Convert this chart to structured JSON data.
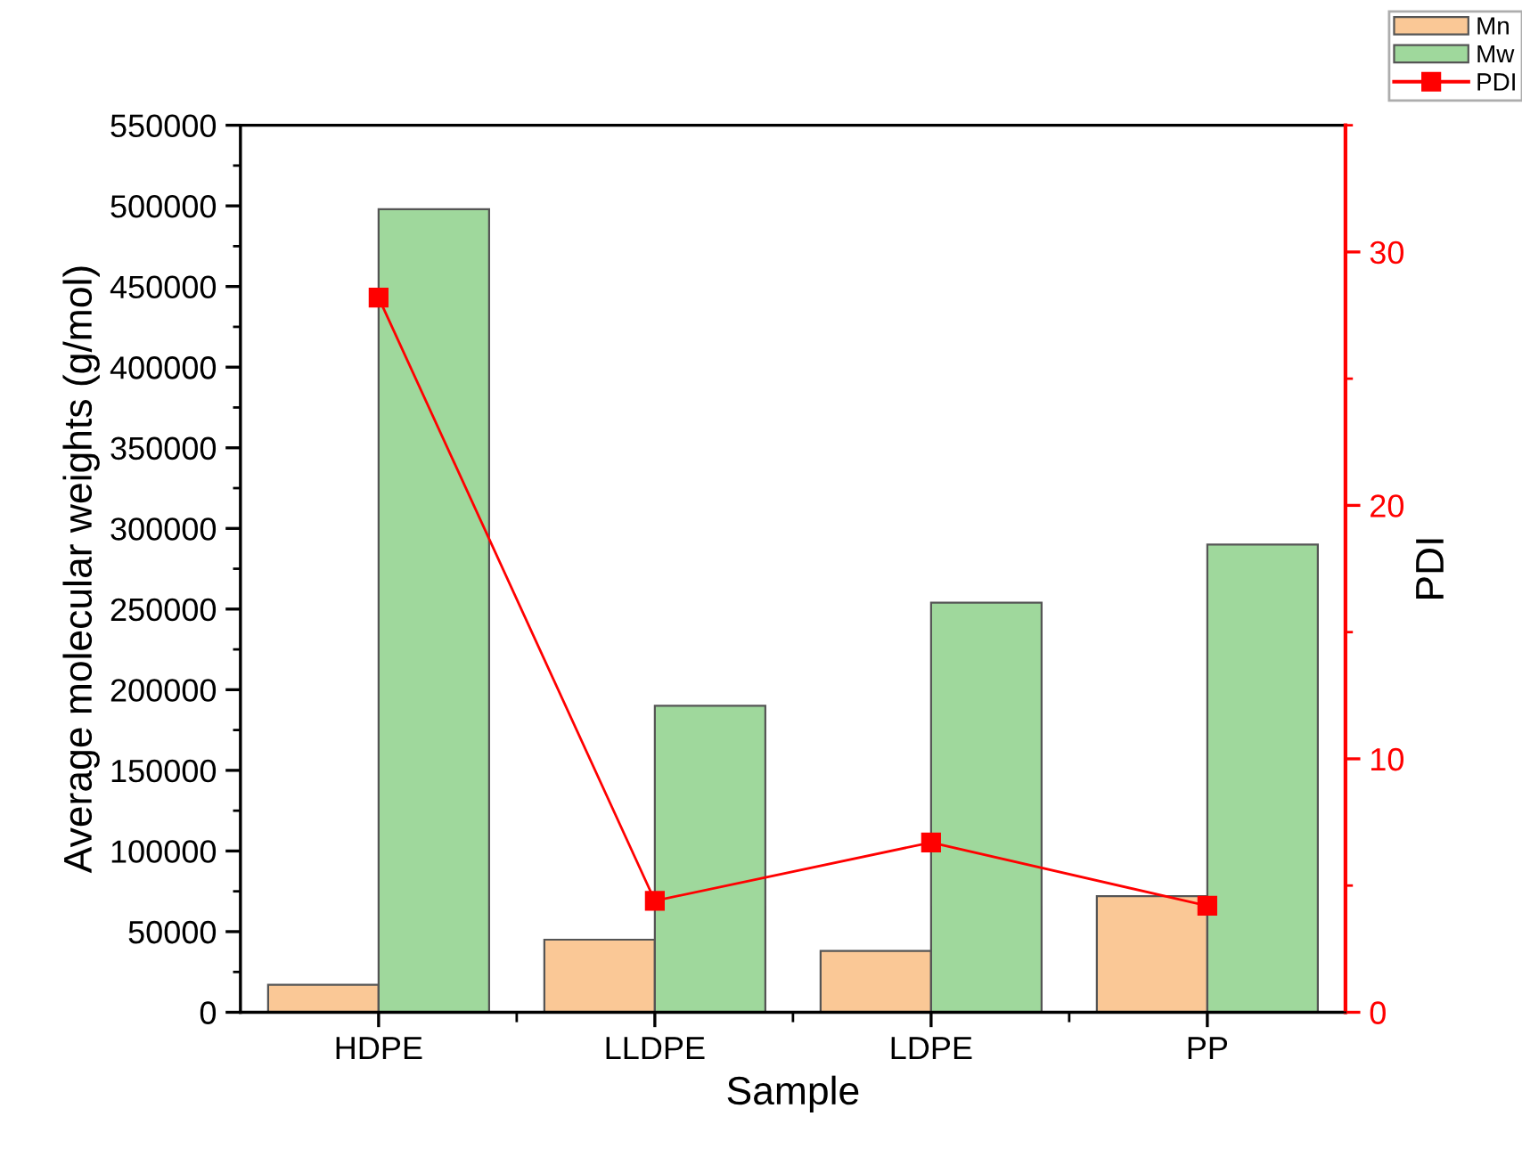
{
  "chart_data": {
    "type": "bar",
    "xlabel": "Sample",
    "ylabel": "Average molecular weights (g/mol)",
    "y2label": "PDI",
    "categories": [
      "HDPE",
      "LLDPE",
      "LDPE",
      "PP"
    ],
    "series": [
      {
        "name": "Mn",
        "color": "#fac896",
        "values": [
          17000,
          45000,
          38000,
          72000
        ]
      },
      {
        "name": "Mw",
        "color": "#9fd89c",
        "values": [
          498000,
          190000,
          254000,
          290000
        ]
      },
      {
        "name": "PDI",
        "type": "line",
        "axis": "y2",
        "color": "#ff0000",
        "marker": "square",
        "line_style": "solid",
        "values": [
          28.2,
          4.4,
          6.7,
          4.2
        ]
      }
    ],
    "ylim": [
      0,
      550000
    ],
    "yticks": [
      0,
      50000,
      100000,
      150000,
      200000,
      250000,
      300000,
      350000,
      400000,
      450000,
      500000,
      550000
    ],
    "y2lim": [
      0,
      35
    ],
    "y2ticks": [
      0,
      10,
      20,
      30
    ],
    "grid": false,
    "legend": "top right"
  }
}
